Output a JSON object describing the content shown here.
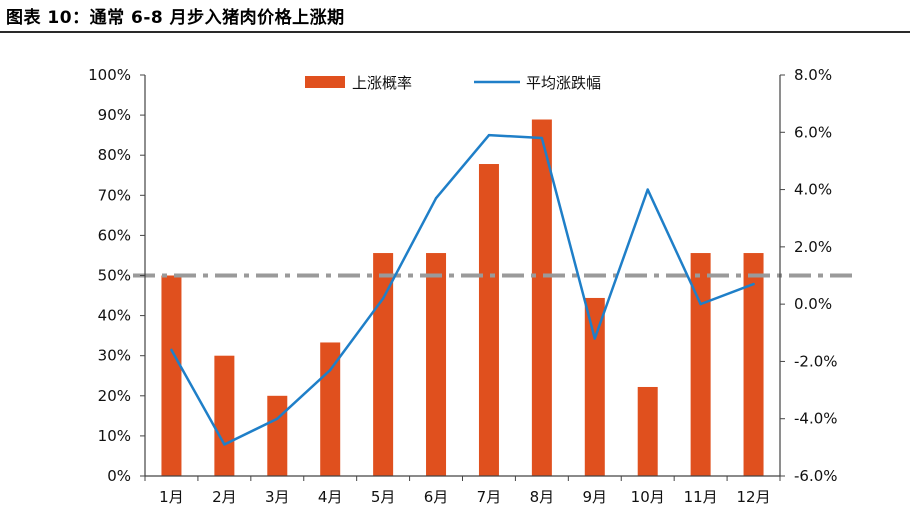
{
  "figure_title": "图表 10：通常 6-8 月步入猪肉价格上涨期",
  "colors": {
    "bar": "#E0501E",
    "line": "#1F7FC8",
    "reference": "#9A9A9A",
    "axis": "#444444"
  },
  "chart_data": {
    "type": "bar",
    "categories": [
      "1月",
      "2月",
      "3月",
      "4月",
      "5月",
      "6月",
      "7月",
      "8月",
      "9月",
      "10月",
      "11月",
      "12月"
    ],
    "y_left": {
      "min": 0,
      "max": 100,
      "ticks": [
        "0%",
        "10%",
        "20%",
        "30%",
        "40%",
        "50%",
        "60%",
        "70%",
        "80%",
        "90%",
        "100%"
      ]
    },
    "y_right": {
      "min": -6,
      "max": 8,
      "ticks": [
        "-6.0%",
        "-4.0%",
        "-2.0%",
        "0.0%",
        "2.0%",
        "4.0%",
        "6.0%",
        "8.0%"
      ]
    },
    "series": [
      {
        "name": "上涨概率",
        "type": "bar",
        "axis": "left",
        "values": [
          50,
          30,
          20,
          33.3,
          55.6,
          55.6,
          77.8,
          88.9,
          44.4,
          22.2,
          55.6,
          55.6
        ]
      },
      {
        "name": "平均涨跌幅",
        "type": "line",
        "axis": "right",
        "values": [
          -1.6,
          -4.9,
          -4.0,
          -2.3,
          0.2,
          3.7,
          5.9,
          5.8,
          -1.2,
          4.0,
          0.0,
          0.7
        ]
      }
    ],
    "reference_line": {
      "axis": "left",
      "value": 50,
      "style": "dash-dot"
    },
    "legend_position": "top-center",
    "grid": false
  }
}
